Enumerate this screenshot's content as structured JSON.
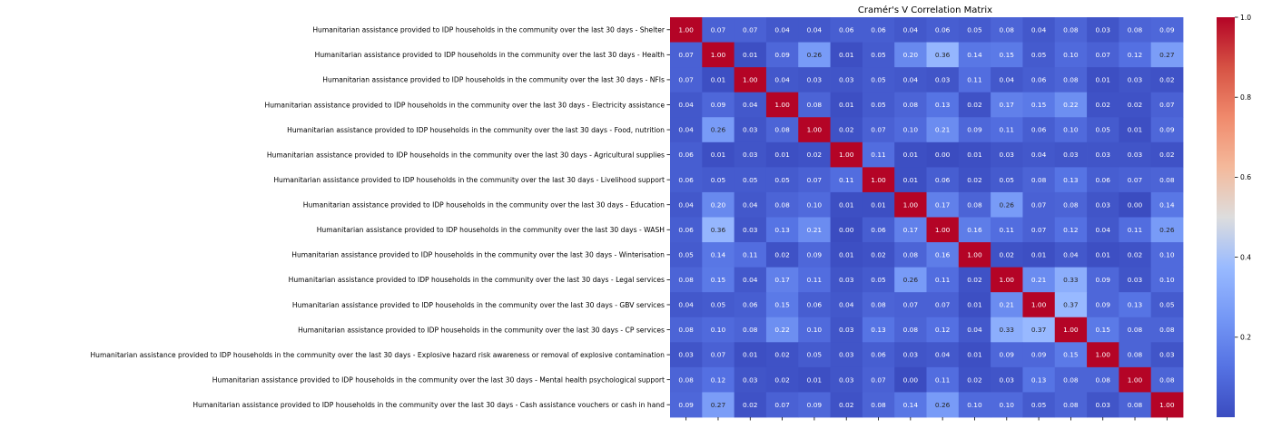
{
  "chart_data": {
    "type": "heatmap",
    "title": "Cramér's V Correlation Matrix",
    "xlabel": "",
    "ylabel": "",
    "row_labels": [
      "Humanitarian assistance provided to IDP households in the community over the last 30 days - Shelter",
      "Humanitarian assistance provided to IDP households in the community over the last 30 days - Health",
      "Humanitarian assistance provided to IDP households in the community over the last 30 days - NFIs",
      "Humanitarian assistance provided to IDP households in the community over the last 30 days - Electricity assistance",
      "Humanitarian assistance provided to IDP households in the community over the last 30 days - Food, nutrition",
      "Humanitarian assistance provided to IDP households in the community over the last 30 days - Agricultural supplies",
      "Humanitarian assistance provided to IDP households in the community over the last 30 days - Livelihood support",
      "Humanitarian assistance provided to IDP households in the community over the last 30 days - Education",
      "Humanitarian assistance provided to IDP households in the community over the last 30 days - WASH",
      "Humanitarian assistance provided to IDP households in the community over the last 30 days - Winterisation",
      "Humanitarian assistance provided to IDP households in the community over the last 30 days - Legal services",
      "Humanitarian assistance provided to IDP households in the community over the last 30 days - GBV services",
      "Humanitarian assistance provided to IDP households in the community over the last 30 days - CP services",
      "Humanitarian assistance provided to IDP households in the community over the last 30 days - Explosive hazard risk awareness or removal of explosive contamination",
      "Humanitarian assistance provided to IDP households in the community over the last 30 days - Mental health psychological support",
      "Humanitarian assistance provided to IDP households in the community over the last 30 days - Cash assistance vouchers or cash in hand"
    ],
    "values": [
      [
        1.0,
        0.07,
        0.07,
        0.04,
        0.04,
        0.06,
        0.06,
        0.04,
        0.06,
        0.05,
        0.08,
        0.04,
        0.08,
        0.03,
        0.08,
        0.09
      ],
      [
        0.07,
        1.0,
        0.01,
        0.09,
        0.26,
        0.01,
        0.05,
        0.2,
        0.36,
        0.14,
        0.15,
        0.05,
        0.1,
        0.07,
        0.12,
        0.27
      ],
      [
        0.07,
        0.01,
        1.0,
        0.04,
        0.03,
        0.03,
        0.05,
        0.04,
        0.03,
        0.11,
        0.04,
        0.06,
        0.08,
        0.01,
        0.03,
        0.02
      ],
      [
        0.04,
        0.09,
        0.04,
        1.0,
        0.08,
        0.01,
        0.05,
        0.08,
        0.13,
        0.02,
        0.17,
        0.15,
        0.22,
        0.02,
        0.02,
        0.07
      ],
      [
        0.04,
        0.26,
        0.03,
        0.08,
        1.0,
        0.02,
        0.07,
        0.1,
        0.21,
        0.09,
        0.11,
        0.06,
        0.1,
        0.05,
        0.01,
        0.09
      ],
      [
        0.06,
        0.01,
        0.03,
        0.01,
        0.02,
        1.0,
        0.11,
        0.01,
        0.0,
        0.01,
        0.03,
        0.04,
        0.03,
        0.03,
        0.03,
        0.02
      ],
      [
        0.06,
        0.05,
        0.05,
        0.05,
        0.07,
        0.11,
        1.0,
        0.01,
        0.06,
        0.02,
        0.05,
        0.08,
        0.13,
        0.06,
        0.07,
        0.08
      ],
      [
        0.04,
        0.2,
        0.04,
        0.08,
        0.1,
        0.01,
        0.01,
        1.0,
        0.17,
        0.08,
        0.26,
        0.07,
        0.08,
        0.03,
        0.0,
        0.14
      ],
      [
        0.06,
        0.36,
        0.03,
        0.13,
        0.21,
        0.0,
        0.06,
        0.17,
        1.0,
        0.16,
        0.11,
        0.07,
        0.12,
        0.04,
        0.11,
        0.26
      ],
      [
        0.05,
        0.14,
        0.11,
        0.02,
        0.09,
        0.01,
        0.02,
        0.08,
        0.16,
        1.0,
        0.02,
        0.01,
        0.04,
        0.01,
        0.02,
        0.1
      ],
      [
        0.08,
        0.15,
        0.04,
        0.17,
        0.11,
        0.03,
        0.05,
        0.26,
        0.11,
        0.02,
        1.0,
        0.21,
        0.33,
        0.09,
        0.03,
        0.1
      ],
      [
        0.04,
        0.05,
        0.06,
        0.15,
        0.06,
        0.04,
        0.08,
        0.07,
        0.07,
        0.01,
        0.21,
        1.0,
        0.37,
        0.09,
        0.13,
        0.05
      ],
      [
        0.08,
        0.1,
        0.08,
        0.22,
        0.1,
        0.03,
        0.13,
        0.08,
        0.12,
        0.04,
        0.33,
        0.37,
        1.0,
        0.15,
        0.08,
        0.08
      ],
      [
        0.03,
        0.07,
        0.01,
        0.02,
        0.05,
        0.03,
        0.06,
        0.03,
        0.04,
        0.01,
        0.09,
        0.09,
        0.15,
        1.0,
        0.08,
        0.03
      ],
      [
        0.08,
        0.12,
        0.03,
        0.02,
        0.01,
        0.03,
        0.07,
        0.0,
        0.11,
        0.02,
        0.03,
        0.13,
        0.08,
        0.08,
        1.0,
        0.08
      ],
      [
        0.09,
        0.27,
        0.02,
        0.07,
        0.09,
        0.02,
        0.08,
        0.14,
        0.26,
        0.1,
        0.1,
        0.05,
        0.08,
        0.03,
        0.08,
        1.0
      ]
    ],
    "colormap": "coolwarm",
    "colorbar": {
      "range": [
        0.0,
        1.0
      ],
      "ticks": [
        0.2,
        0.4,
        0.6,
        0.8,
        1.0
      ],
      "tick_labels": [
        "0.2",
        "0.4",
        "0.6",
        "0.8",
        "1.0"
      ]
    },
    "annotation_format": "2 decimals",
    "grid": false,
    "legend": "colorbar at right"
  }
}
